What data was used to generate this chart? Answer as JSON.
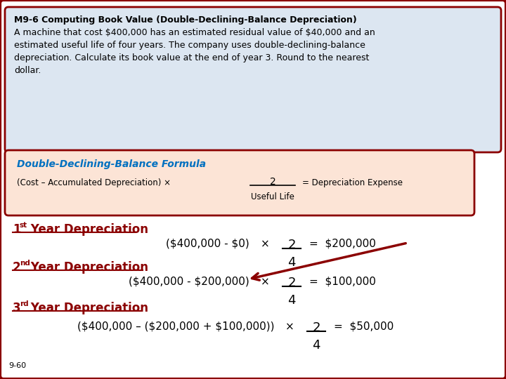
{
  "title_bold": "M9-6 Computing Book Value (Double-Declining-Balance Depreciation)",
  "body_line1": "A machine that cost $400,000 has an estimated residual value of $40,000 and an",
  "body_line2": "estimated useful life of four years. The company uses double-declining-balance",
  "body_line3": "depreciation. Calculate its book value at the end of year 3. Round to the nearest",
  "body_line4": "dollar.",
  "formula_title": "Double-Declining-Balance Formula",
  "formula_left": "(Cost – Accumulated Depreciation) ×",
  "formula_frac_num": "2",
  "formula_frac_den": "Useful Life",
  "formula_right": "= Depreciation Expense",
  "yr1_heading_num": "1",
  "yr1_heading_sup": "st",
  "yr1_heading_rest": " Year Depreciation",
  "yr1_eq": "($400,000 - $0)",
  "yr1_frac_num": "2",
  "yr1_frac_den": "4",
  "yr1_result": "=  $200,000",
  "yr2_heading_num": "2",
  "yr2_heading_sup": "nd",
  "yr2_heading_rest": " Year Depreciation",
  "yr2_eq": "($400,000 - $200,000)",
  "yr2_frac_num": "2",
  "yr2_frac_den": "4",
  "yr2_result": "=  $100,000",
  "yr3_heading_num": "3",
  "yr3_heading_sup": "rd",
  "yr3_heading_rest": " Year Depreciation",
  "yr3_eq": "($400,000 – ($200,000 + $100,000))",
  "yr3_frac_num": "2",
  "yr3_frac_den": "4",
  "yr3_result": "=  $50,000",
  "footer": "9-60",
  "outer_bg": "#ffffff",
  "outer_border_color": "#8B0000",
  "top_box_bg": "#dce6f1",
  "top_box_border": "#8B0000",
  "formula_box_bg": "#fce4d6",
  "formula_box_border": "#8B0000",
  "formula_title_color": "#0070C0",
  "year_color": "#8B0000",
  "arrow_color": "#8B0000",
  "text_color": "#000000",
  "title_color": "#000000",
  "times_symbol": "×"
}
